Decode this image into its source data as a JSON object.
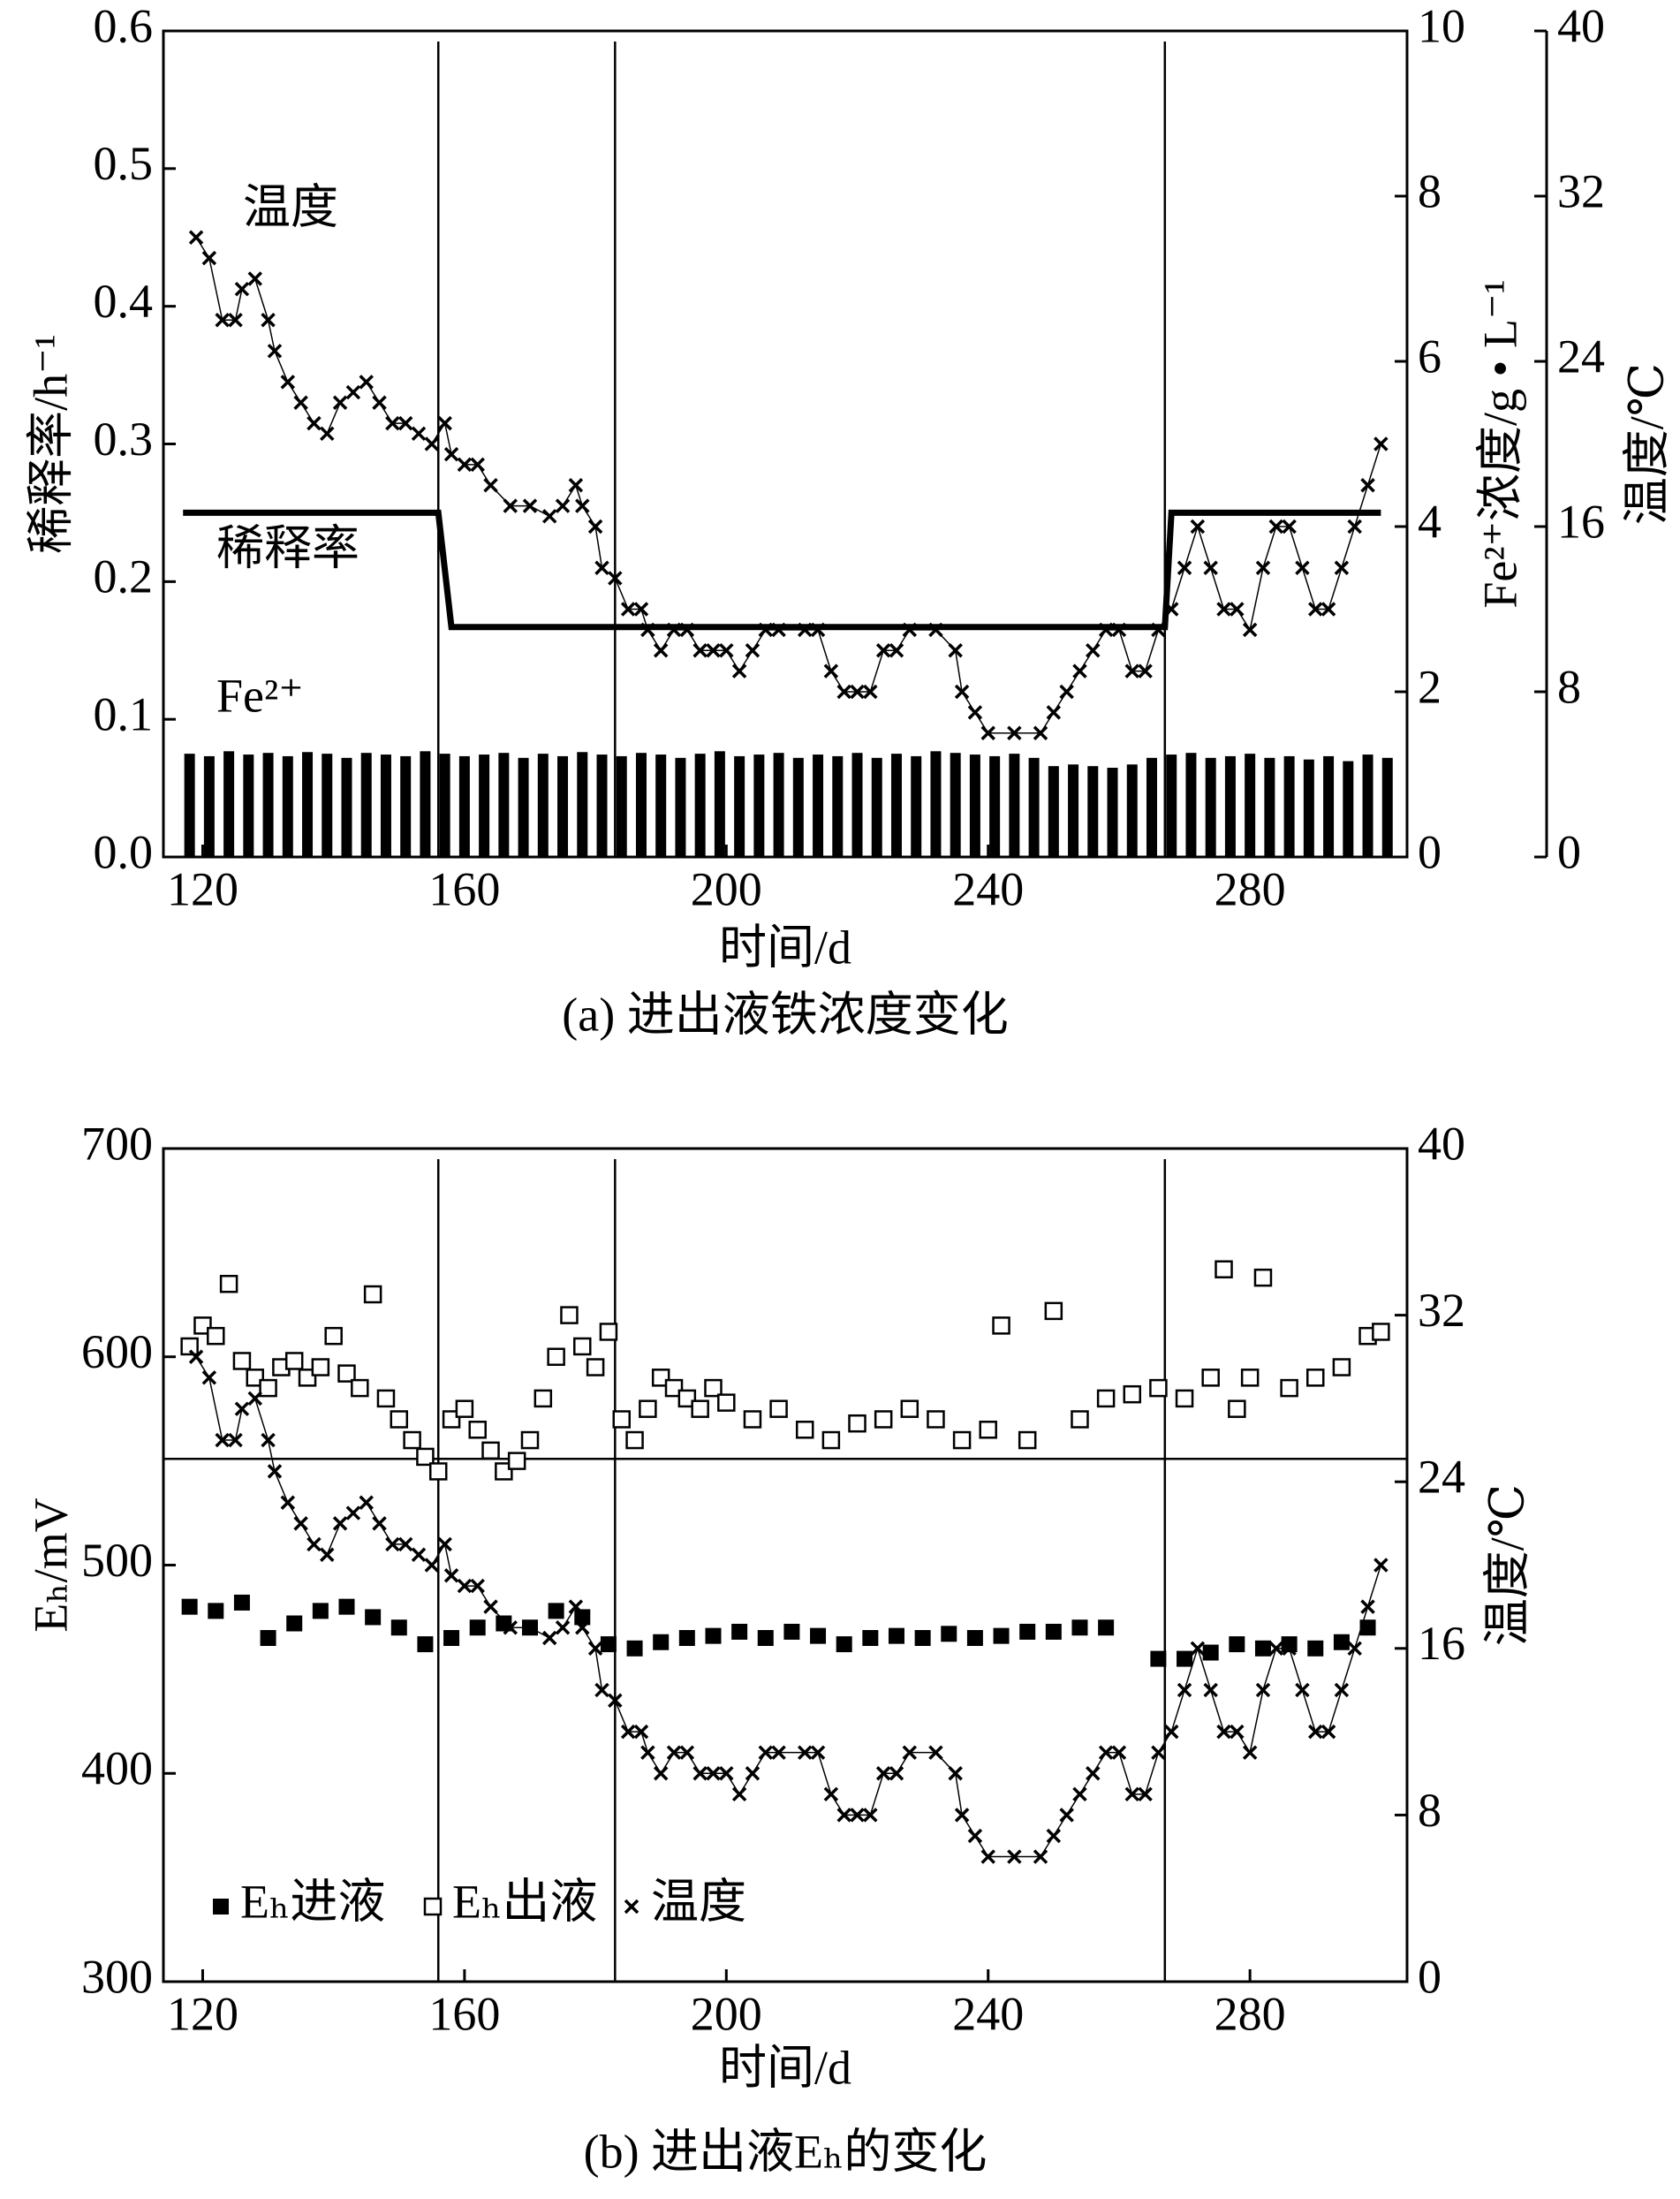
{
  "chart_data": [
    {
      "type": "combo",
      "caption": "(a) 进出液铁浓度变化",
      "x_label": "时间/d",
      "y_label": "稀释率/h⁻¹",
      "y2_label": "Fe²⁺浓度/g • L⁻¹",
      "y3_label": "温度/℃",
      "xlim": [
        114,
        304
      ],
      "xticks": [
        120,
        160,
        200,
        240,
        280
      ],
      "ylim": [
        0,
        0.6
      ],
      "yticks": [
        {
          "value": 0,
          "label": "0.0"
        },
        0.1,
        0.2,
        0.3,
        0.4,
        0.5,
        0.6
      ],
      "y2lim": [
        0,
        10
      ],
      "y2ticks": [
        0,
        2,
        4,
        6,
        8,
        10
      ],
      "y3lim": [
        0,
        40
      ],
      "y3ticks": [
        0,
        8,
        16,
        24,
        32,
        40
      ],
      "vlines": [
        156,
        183,
        267
      ],
      "series": [
        {
          "name": "Fe²⁺",
          "axis": "y2",
          "style": "bar",
          "color": "#000",
          "x": [
            118,
            121,
            124,
            127,
            130,
            133,
            136,
            139,
            142,
            145,
            148,
            151,
            154,
            157,
            160,
            163,
            166,
            169,
            172,
            175,
            178,
            181,
            184,
            187,
            190,
            193,
            196,
            199,
            202,
            205,
            208,
            211,
            214,
            217,
            220,
            223,
            226,
            229,
            232,
            235,
            238,
            241,
            244,
            247,
            250,
            253,
            256,
            259,
            262,
            265,
            268,
            271,
            274,
            277,
            280,
            283,
            286,
            289,
            292,
            295,
            298,
            301
          ],
          "values": [
            1.25,
            1.22,
            1.28,
            1.24,
            1.26,
            1.22,
            1.27,
            1.25,
            1.2,
            1.26,
            1.24,
            1.22,
            1.28,
            1.25,
            1.22,
            1.24,
            1.26,
            1.2,
            1.25,
            1.22,
            1.27,
            1.24,
            1.22,
            1.26,
            1.24,
            1.2,
            1.25,
            1.28,
            1.22,
            1.24,
            1.26,
            1.2,
            1.24,
            1.22,
            1.26,
            1.2,
            1.25,
            1.22,
            1.28,
            1.26,
            1.24,
            1.22,
            1.25,
            1.2,
            1.1,
            1.12,
            1.1,
            1.08,
            1.12,
            1.2,
            1.24,
            1.26,
            1.2,
            1.22,
            1.25,
            1.2,
            1.22,
            1.18,
            1.22,
            1.16,
            1.24,
            1.2
          ]
        },
        {
          "name": "稀释率",
          "axis": "y",
          "style": "line",
          "color": "#000",
          "x": [
            117,
            156,
            158,
            267,
            268,
            300
          ],
          "values": [
            0.25,
            0.25,
            0.167,
            0.167,
            0.25,
            0.25
          ]
        },
        {
          "name": "温度",
          "axis": "y3",
          "style": "cross",
          "color": "#000",
          "x": [
            119,
            121,
            123,
            125,
            126,
            128,
            130,
            131,
            133,
            135,
            137,
            139,
            141,
            143,
            145,
            147,
            149,
            151,
            153,
            155,
            157,
            158,
            160,
            162,
            164,
            167,
            170,
            173,
            175,
            177,
            178,
            180,
            181,
            183,
            185,
            187,
            188,
            190,
            192,
            194,
            196,
            198,
            200,
            202,
            204,
            206,
            208,
            212,
            214,
            216,
            218,
            220,
            222,
            224,
            226,
            228,
            232,
            235,
            236,
            238,
            240,
            244,
            248,
            250,
            252,
            254,
            256,
            258,
            260,
            262,
            264,
            266,
            268,
            270,
            272,
            274,
            276,
            278,
            280,
            282,
            284,
            286,
            288,
            290,
            292,
            294,
            296,
            298,
            300
          ],
          "values": [
            30,
            29,
            26,
            26,
            27.5,
            28,
            26,
            24.5,
            23,
            22,
            21,
            20.5,
            22,
            22.5,
            23,
            22,
            21,
            21,
            20.5,
            20,
            21,
            19.5,
            19,
            19,
            18,
            17,
            17,
            16.5,
            17,
            18,
            17,
            16,
            14,
            13.5,
            12,
            12,
            11,
            10,
            11,
            11,
            10,
            10,
            10,
            9,
            10,
            11,
            11,
            11,
            11,
            9,
            8,
            8,
            8,
            10,
            10,
            11,
            11,
            10,
            8,
            7,
            6,
            6,
            6,
            7,
            8,
            9,
            10,
            11,
            11,
            9,
            9,
            11,
            12,
            14,
            16,
            14,
            12,
            12,
            11,
            14,
            16,
            16,
            14,
            12,
            12,
            14,
            16,
            18,
            20
          ]
        }
      ]
    },
    {
      "type": "scatter",
      "caption": "(b) 进出液Eₕ的变化",
      "x_label": "时间/d",
      "y_label": "Eₕ/mV",
      "y2_label": "温度/℃",
      "xlim": [
        114,
        304
      ],
      "xticks": [
        120,
        160,
        200,
        240,
        280
      ],
      "ylim": [
        300,
        700
      ],
      "yticks": [
        300,
        400,
        500,
        600,
        700
      ],
      "y2lim": [
        0,
        40
      ],
      "y2ticks": [
        0,
        8,
        16,
        24,
        32,
        40
      ],
      "vlines": [
        156,
        183,
        267
      ],
      "hline": 551,
      "series": [
        {
          "name": "Eₕ进液",
          "axis": "y",
          "style": "square",
          "color": "#000",
          "x": [
            118,
            122,
            126,
            130,
            134,
            138,
            142,
            146,
            150,
            154,
            158,
            162,
            166,
            170,
            174,
            178,
            182,
            186,
            190,
            194,
            198,
            202,
            206,
            210,
            214,
            218,
            222,
            226,
            230,
            234,
            238,
            242,
            246,
            250,
            254,
            258,
            266,
            270,
            274,
            278,
            282,
            286,
            290,
            294,
            298
          ],
          "values": [
            480,
            478,
            482,
            465,
            472,
            478,
            480,
            475,
            470,
            462,
            465,
            470,
            472,
            470,
            478,
            475,
            462,
            460,
            463,
            465,
            466,
            468,
            465,
            468,
            466,
            462,
            465,
            466,
            465,
            467,
            465,
            466,
            468,
            468,
            470,
            470,
            455,
            455,
            458,
            462,
            460,
            462,
            460,
            463,
            470
          ]
        },
        {
          "name": "Eₕ出液",
          "axis": "y",
          "style": "open-square",
          "color": "#000",
          "x": [
            118,
            120,
            122,
            124,
            126,
            128,
            130,
            132,
            134,
            136,
            138,
            140,
            142,
            144,
            146,
            148,
            150,
            152,
            154,
            156,
            158,
            160,
            162,
            164,
            166,
            168,
            170,
            172,
            174,
            176,
            178,
            180,
            182,
            184,
            186,
            188,
            190,
            192,
            194,
            196,
            198,
            200,
            204,
            208,
            212,
            216,
            220,
            224,
            228,
            232,
            236,
            240,
            242,
            246,
            250,
            254,
            258,
            262,
            266,
            270,
            274,
            276,
            278,
            280,
            282,
            286,
            290,
            294,
            298,
            300
          ],
          "values": [
            605,
            615,
            610,
            635,
            598,
            590,
            585,
            595,
            598,
            590,
            595,
            610,
            592,
            585,
            630,
            580,
            570,
            560,
            552,
            545,
            570,
            575,
            565,
            555,
            545,
            550,
            560,
            580,
            600,
            620,
            605,
            595,
            612,
            570,
            560,
            575,
            590,
            585,
            580,
            575,
            585,
            578,
            570,
            575,
            565,
            560,
            568,
            570,
            575,
            570,
            560,
            565,
            615,
            560,
            622,
            570,
            580,
            582,
            585,
            580,
            590,
            642,
            575,
            590,
            638,
            585,
            590,
            595,
            610,
            612
          ]
        },
        {
          "name": "温度",
          "axis": "y2",
          "style": "cross",
          "color": "#000",
          "x": [
            119,
            121,
            123,
            125,
            126,
            128,
            130,
            131,
            133,
            135,
            137,
            139,
            141,
            143,
            145,
            147,
            149,
            151,
            153,
            155,
            157,
            158,
            160,
            162,
            164,
            167,
            170,
            173,
            175,
            177,
            178,
            180,
            181,
            183,
            185,
            187,
            188,
            190,
            192,
            194,
            196,
            198,
            200,
            202,
            204,
            206,
            208,
            212,
            214,
            216,
            218,
            220,
            222,
            224,
            226,
            228,
            232,
            235,
            236,
            238,
            240,
            244,
            248,
            250,
            252,
            254,
            256,
            258,
            260,
            262,
            264,
            266,
            268,
            270,
            272,
            274,
            276,
            278,
            280,
            282,
            284,
            286,
            288,
            290,
            292,
            294,
            296,
            298,
            300
          ],
          "values": [
            30,
            29,
            26,
            26,
            27.5,
            28,
            26,
            24.5,
            23,
            22,
            21,
            20.5,
            22,
            22.5,
            23,
            22,
            21,
            21,
            20.5,
            20,
            21,
            19.5,
            19,
            19,
            18,
            17,
            17,
            16.5,
            17,
            18,
            17,
            16,
            14,
            13.5,
            12,
            12,
            11,
            10,
            11,
            11,
            10,
            10,
            10,
            9,
            10,
            11,
            11,
            11,
            11,
            9,
            8,
            8,
            8,
            10,
            10,
            11,
            11,
            10,
            8,
            7,
            6,
            6,
            6,
            7,
            8,
            9,
            10,
            11,
            11,
            9,
            9,
            11,
            12,
            14,
            16,
            14,
            12,
            12,
            11,
            14,
            16,
            16,
            14,
            12,
            12,
            14,
            16,
            18,
            20
          ]
        }
      ]
    }
  ]
}
